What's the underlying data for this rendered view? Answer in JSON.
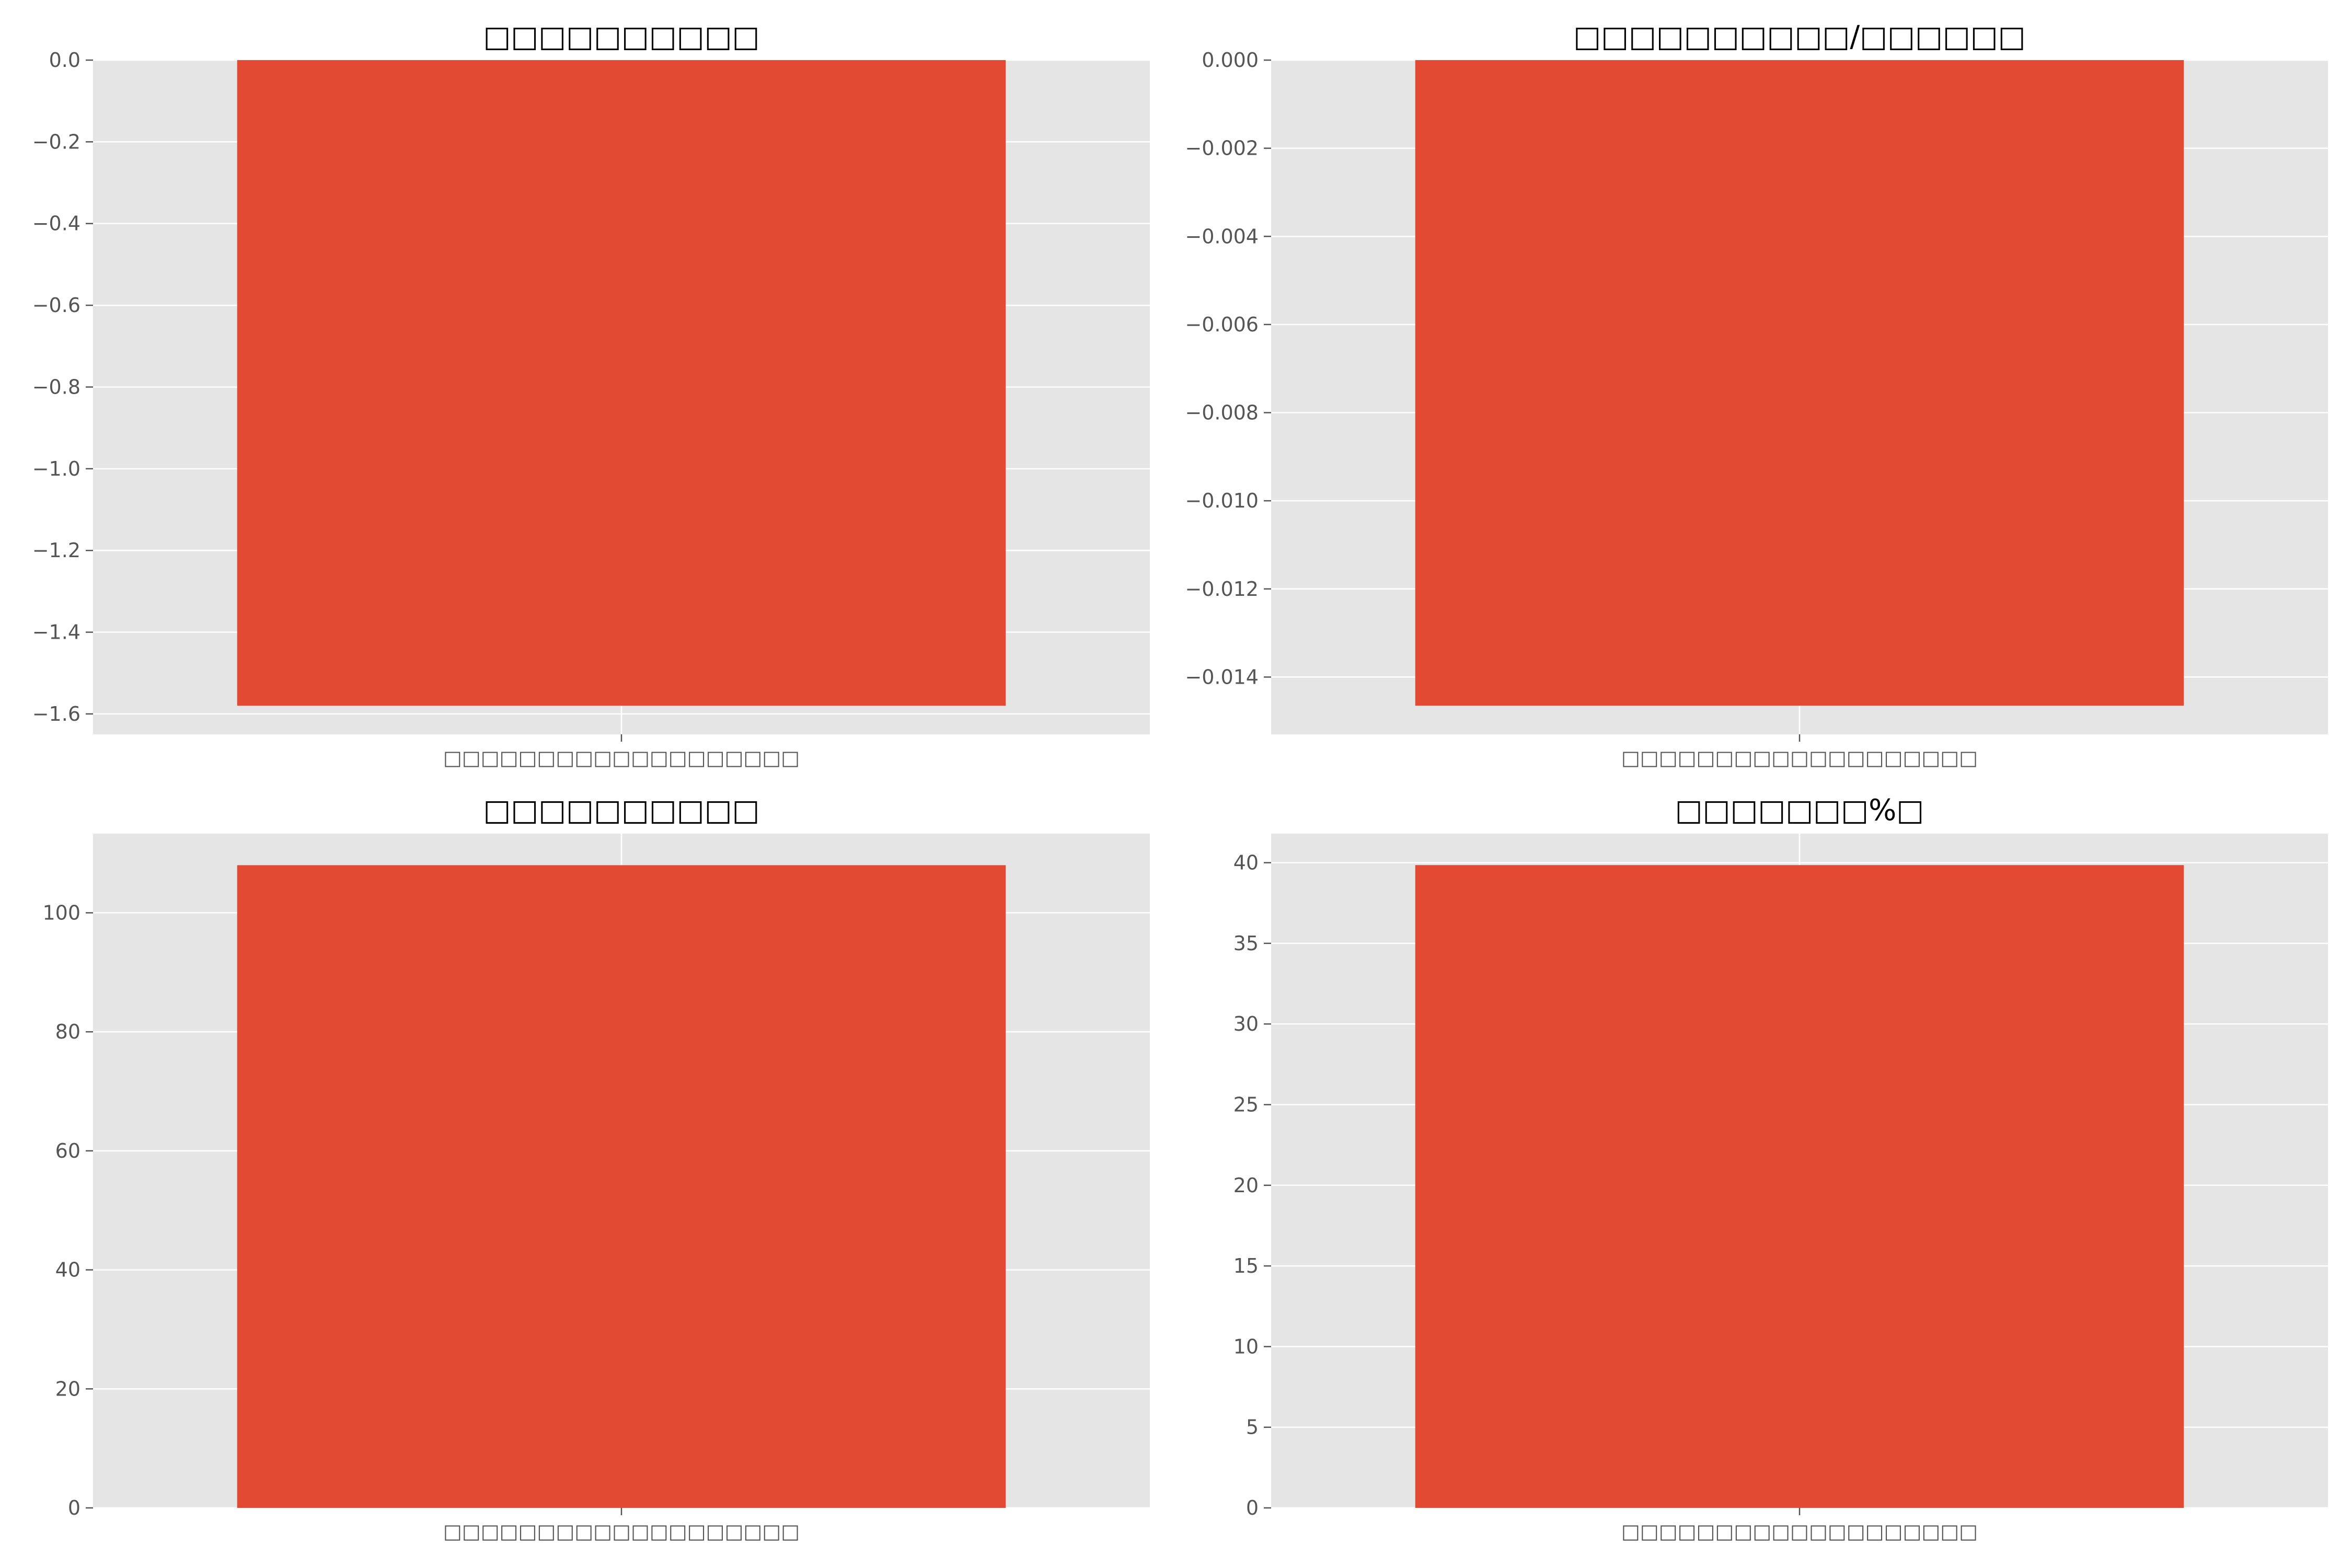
{
  "figure": {
    "background": "#ffffff",
    "plot_background": "#e5e5e5",
    "grid_color": "#ffffff",
    "bar_color": "#e24a33",
    "tick_color": "#555555",
    "title_color": "#000000"
  },
  "chart_data": [
    {
      "type": "bar",
      "title": "□□□□□□□□□□",
      "xlabel": "",
      "ylabel": "",
      "categories": [
        "□□□□□□□□□□□□□□□□□□□"
      ],
      "values": [
        -1.58
      ],
      "ylim": [
        -1.65,
        0.0
      ],
      "yticks": [
        0.0,
        -0.2,
        -0.4,
        -0.6,
        -0.8,
        -1.0,
        -1.2,
        -1.4,
        -1.6
      ],
      "ytick_labels": [
        "0.0",
        "−0.2",
        "−0.4",
        "−0.6",
        "−0.8",
        "−1.0",
        "−1.2",
        "−1.4",
        "−1.6"
      ],
      "grid": true,
      "color": "#e24a33"
    },
    {
      "type": "bar",
      "title": "□□□□□□□□□□/□□□□□□",
      "xlabel": "",
      "ylabel": "",
      "categories": [
        "□□□□□□□□□□□□□□□□□□□"
      ],
      "values": [
        -0.01465
      ],
      "ylim": [
        -0.0153,
        0.0
      ],
      "yticks": [
        0.0,
        -0.002,
        -0.004,
        -0.006,
        -0.008,
        -0.01,
        -0.012,
        -0.014
      ],
      "ytick_labels": [
        "0.000",
        "−0.002",
        "−0.004",
        "−0.006",
        "−0.008",
        "−0.010",
        "−0.012",
        "−0.014"
      ],
      "grid": true,
      "color": "#e24a33"
    },
    {
      "type": "bar",
      "title": "□□□□□□□□□□",
      "xlabel": "",
      "ylabel": "",
      "categories": [
        "□□□□□□□□□□□□□□□□□□□"
      ],
      "values": [
        108.0
      ],
      "ylim": [
        0,
        113.3
      ],
      "yticks": [
        0,
        20,
        40,
        60,
        80,
        100
      ],
      "ytick_labels": [
        "0",
        "20",
        "40",
        "60",
        "80",
        "100"
      ],
      "grid": true,
      "color": "#e24a33"
    },
    {
      "type": "bar",
      "title": "□□□□□□□%□",
      "xlabel": "",
      "ylabel": "",
      "categories": [
        "□□□□□□□□□□□□□□□□□□□"
      ],
      "values": [
        39.85
      ],
      "ylim": [
        0,
        41.8
      ],
      "yticks": [
        0,
        5,
        10,
        15,
        20,
        25,
        30,
        35,
        40
      ],
      "ytick_labels": [
        "0",
        "5",
        "10",
        "15",
        "20",
        "25",
        "30",
        "35",
        "40"
      ],
      "grid": true,
      "color": "#e24a33"
    }
  ]
}
